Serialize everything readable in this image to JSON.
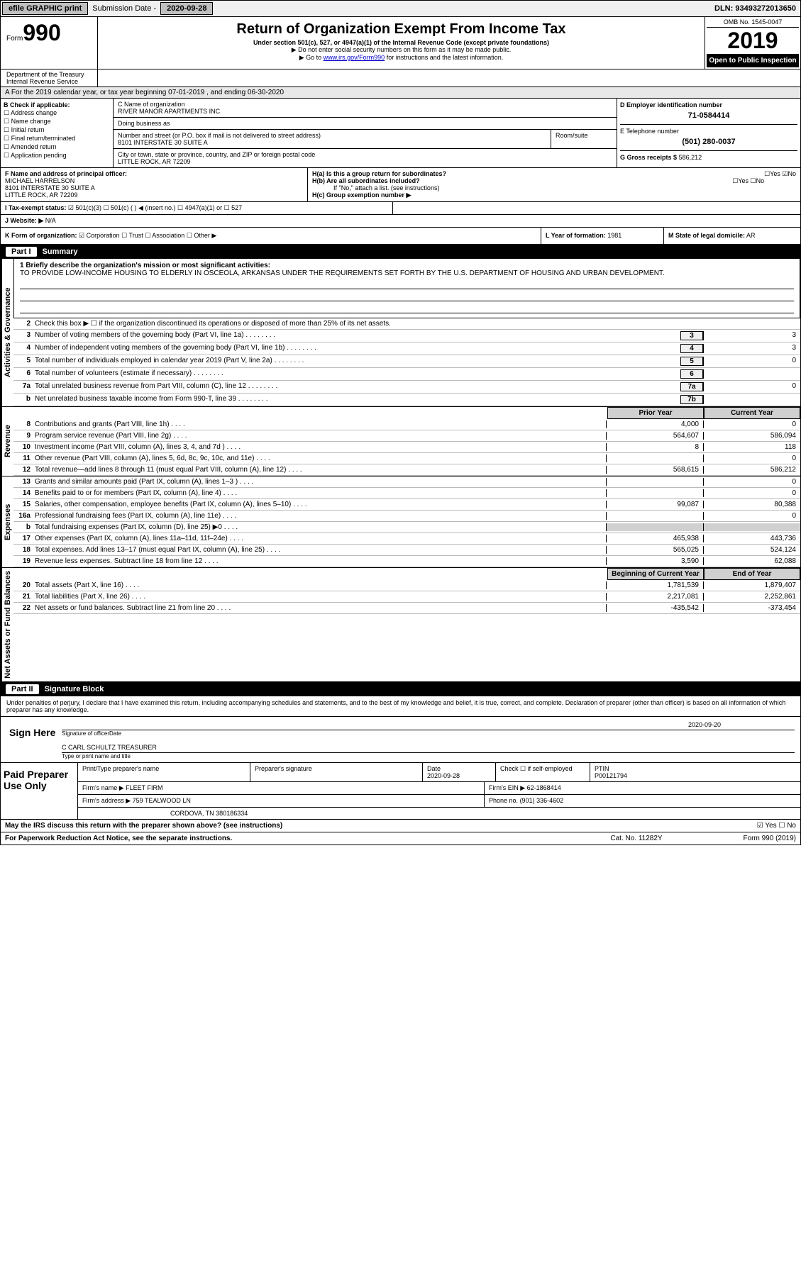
{
  "header": {
    "efile": "efile GRAPHIC print",
    "sub_label": "Submission Date -",
    "sub_date": "2020-09-28",
    "dln_label": "DLN:",
    "dln": "93493272013650"
  },
  "form": {
    "form_word": "Form",
    "num": "990",
    "title": "Return of Organization Exempt From Income Tax",
    "sub1": "Under section 501(c), 527, or 4947(a)(1) of the Internal Revenue Code (except private foundations)",
    "sub2": "▶ Do not enter social security numbers on this form as it may be made public.",
    "sub3_pre": "▶ Go to ",
    "sub3_link": "www.irs.gov/Form990",
    "sub3_post": " for instructions and the latest information.",
    "omb": "OMB No. 1545-0047",
    "year": "2019",
    "pub": "Open to Public Inspection",
    "dept1": "Department of the Treasury",
    "dept2": "Internal Revenue Service"
  },
  "rowA": "A For the 2019 calendar year, or tax year beginning 07-01-2019   , and ending 06-30-2020",
  "B": {
    "label": "B Check if applicable:",
    "items": [
      "Address change",
      "Name change",
      "Initial return",
      "Final return/terminated",
      "Amended return",
      "Application pending"
    ]
  },
  "C": {
    "name_lbl": "C Name of organization",
    "name": "RIVER MANOR APARTMENTS INC",
    "dba_lbl": "Doing business as",
    "dba": "",
    "addr_lbl": "Number and street (or P.O. box if mail is not delivered to street address)",
    "room_lbl": "Room/suite",
    "addr": "8101 INTERSTATE 30 SUITE A",
    "city_lbl": "City or town, state or province, country, and ZIP or foreign postal code",
    "city": "LITTLE ROCK, AR  72209"
  },
  "D": {
    "ein_lbl": "D Employer identification number",
    "ein": "71-0584414",
    "tel_lbl": "E Telephone number",
    "tel": "(501) 280-0037",
    "g_lbl": "G Gross receipts $",
    "g_val": "586,212"
  },
  "F": {
    "lbl": "F Name and address of principal officer:",
    "name": "MICHAEL HARRELSON",
    "addr1": "8101 INTERSTATE 30 SUITE A",
    "addr2": "LITTLE ROCK, AR  72209"
  },
  "H": {
    "a": "H(a)  Is this a group return for subordinates?",
    "b": "H(b)  Are all subordinates included?",
    "b_note": "If \"No,\" attach a list. (see instructions)",
    "c": "H(c)  Group exemption number ▶",
    "yes": "Yes",
    "no": "No"
  },
  "I": {
    "lbl": "I   Tax-exempt status:",
    "opts": [
      "501(c)(3)",
      "501(c) (  ) ◀ (insert no.)",
      "4947(a)(1) or",
      "527"
    ]
  },
  "J": {
    "lbl": "J   Website: ▶",
    "val": "N/A"
  },
  "K": {
    "lbl": "K Form of organization:",
    "opts": [
      "Corporation",
      "Trust",
      "Association",
      "Other ▶"
    ]
  },
  "L": {
    "lbl": "L Year of formation:",
    "val": "1981"
  },
  "M": {
    "lbl": "M State of legal domicile:",
    "val": "AR"
  },
  "part1": {
    "num": "Part I",
    "title": "Summary"
  },
  "mission_lbl": "1  Briefly describe the organization's mission or most significant activities:",
  "mission": "TO PROVIDE LOW-INCOME HOUSING TO ELDERLY IN OSCEOLA, ARKANSAS UNDER THE REQUIREMENTS SET FORTH BY THE U.S. DEPARTMENT OF HOUSING AND URBAN DEVELOPMENT.",
  "line2": "Check this box ▶ ☐  if the organization discontinued its operations or disposed of more than 25% of its net assets.",
  "gov_lines": [
    {
      "n": "3",
      "t": "Number of voting members of the governing body (Part VI, line 1a)",
      "b": "3",
      "v": "3"
    },
    {
      "n": "4",
      "t": "Number of independent voting members of the governing body (Part VI, line 1b)",
      "b": "4",
      "v": "3"
    },
    {
      "n": "5",
      "t": "Total number of individuals employed in calendar year 2019 (Part V, line 2a)",
      "b": "5",
      "v": "0"
    },
    {
      "n": "6",
      "t": "Total number of volunteers (estimate if necessary)",
      "b": "6",
      "v": ""
    },
    {
      "n": "7a",
      "t": "Total unrelated business revenue from Part VIII, column (C), line 12",
      "b": "7a",
      "v": "0"
    },
    {
      "n": "b",
      "t": "Net unrelated business taxable income from Form 990-T, line 39",
      "b": "7b",
      "v": ""
    }
  ],
  "col_hdrs": {
    "prior": "Prior Year",
    "current": "Current Year"
  },
  "rev_lines": [
    {
      "n": "8",
      "t": "Contributions and grants (Part VIII, line 1h)",
      "p": "4,000",
      "c": "0"
    },
    {
      "n": "9",
      "t": "Program service revenue (Part VIII, line 2g)",
      "p": "564,607",
      "c": "586,094"
    },
    {
      "n": "10",
      "t": "Investment income (Part VIII, column (A), lines 3, 4, and 7d )",
      "p": "8",
      "c": "118"
    },
    {
      "n": "11",
      "t": "Other revenue (Part VIII, column (A), lines 5, 6d, 8c, 9c, 10c, and 11e)",
      "p": "",
      "c": "0"
    },
    {
      "n": "12",
      "t": "Total revenue—add lines 8 through 11 (must equal Part VIII, column (A), line 12)",
      "p": "568,615",
      "c": "586,212"
    }
  ],
  "exp_lines": [
    {
      "n": "13",
      "t": "Grants and similar amounts paid (Part IX, column (A), lines 1–3 )",
      "p": "",
      "c": "0"
    },
    {
      "n": "14",
      "t": "Benefits paid to or for members (Part IX, column (A), line 4)",
      "p": "",
      "c": "0"
    },
    {
      "n": "15",
      "t": "Salaries, other compensation, employee benefits (Part IX, column (A), lines 5–10)",
      "p": "99,087",
      "c": "80,388"
    },
    {
      "n": "16a",
      "t": "Professional fundraising fees (Part IX, column (A), line 11e)",
      "p": "",
      "c": "0"
    },
    {
      "n": "b",
      "t": "Total fundraising expenses (Part IX, column (D), line 25) ▶0",
      "p": "",
      "c": "",
      "grey": true
    },
    {
      "n": "17",
      "t": "Other expenses (Part IX, column (A), lines 11a–11d, 11f–24e)",
      "p": "465,938",
      "c": "443,736"
    },
    {
      "n": "18",
      "t": "Total expenses. Add lines 13–17 (must equal Part IX, column (A), line 25)",
      "p": "565,025",
      "c": "524,124"
    },
    {
      "n": "19",
      "t": "Revenue less expenses. Subtract line 18 from line 12",
      "p": "3,590",
      "c": "62,088"
    }
  ],
  "net_hdrs": {
    "beg": "Beginning of Current Year",
    "end": "End of Year"
  },
  "net_lines": [
    {
      "n": "20",
      "t": "Total assets (Part X, line 16)",
      "p": "1,781,539",
      "c": "1,879,407"
    },
    {
      "n": "21",
      "t": "Total liabilities (Part X, line 26)",
      "p": "2,217,081",
      "c": "2,252,861"
    },
    {
      "n": "22",
      "t": "Net assets or fund balances. Subtract line 21 from line 20",
      "p": "-435,542",
      "c": "-373,454"
    }
  ],
  "part2": {
    "num": "Part II",
    "title": "Signature Block"
  },
  "sig_decl": "Under penalties of perjury, I declare that I have examined this return, including accompanying schedules and statements, and to the best of my knowledge and belief, it is true, correct, and complete. Declaration of preparer (other than officer) is based on all information of which preparer has any knowledge.",
  "sig": {
    "here": "Sign Here",
    "sig_lbl": "Signature of officer",
    "date_lbl": "Date",
    "date": "2020-09-20",
    "name": "C CARL SCHULTZ  TREASURER",
    "name_lbl": "Type or print name and title"
  },
  "paid": {
    "lbl": "Paid Preparer Use Only",
    "h1": "Print/Type preparer's name",
    "h2": "Preparer's signature",
    "h3": "Date",
    "h3v": "2020-09-28",
    "h4": "Check ☐ if self-employed",
    "h5": "PTIN",
    "h5v": "P00121794",
    "firm_lbl": "Firm's name    ▶",
    "firm": "FLEET FIRM",
    "ein_lbl": "Firm's EIN ▶",
    "ein": "62-1868414",
    "addr_lbl": "Firm's address ▶",
    "addr1": "759 TEALWOOD LN",
    "addr2": "CORDOVA, TN  380186334",
    "phone_lbl": "Phone no.",
    "phone": "(901) 336-4602"
  },
  "discuss": "May the IRS discuss this return with the preparer shown above? (see instructions)",
  "footer": {
    "notice": "For Paperwork Reduction Act Notice, see the separate instructions.",
    "cat": "Cat. No. 11282Y",
    "form": "Form 990 (2019)"
  },
  "sidebar": {
    "gov": "Activities & Governance",
    "rev": "Revenue",
    "exp": "Expenses",
    "net": "Net Assets or Fund Balances"
  }
}
